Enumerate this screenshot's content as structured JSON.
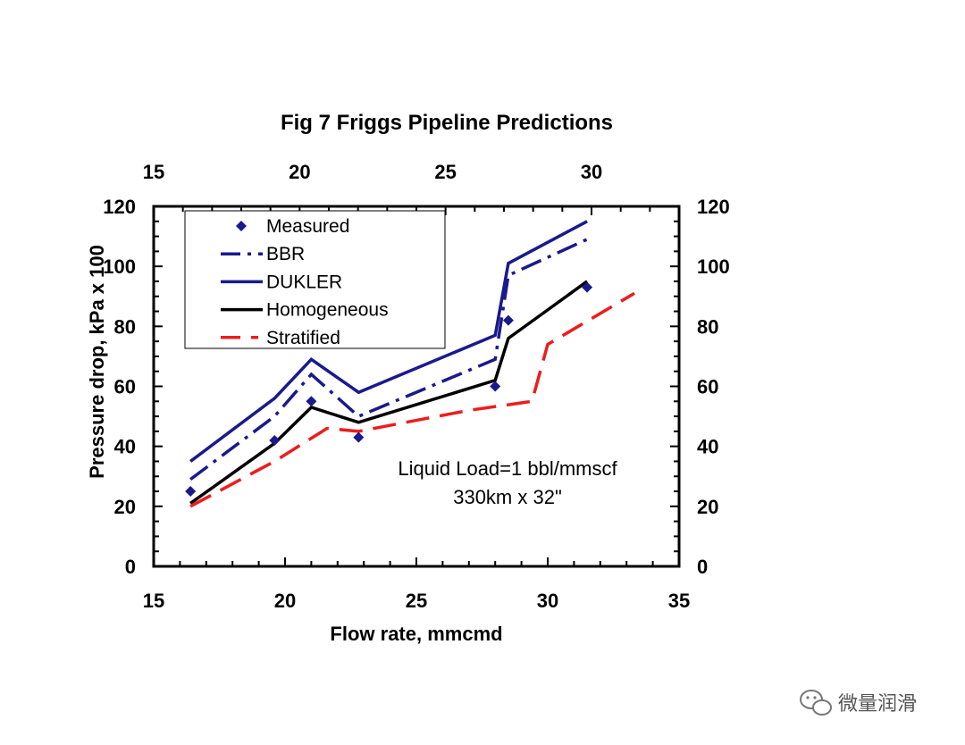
{
  "chart_data": {
    "type": "line",
    "title": "Fig 7  Friggs Pipeline Predictions",
    "xlabel": "Flow rate, mmcmd",
    "ylabel": "Pressure drop, kPa x 100",
    "xlim": [
      15,
      35
    ],
    "ylim": [
      0,
      120
    ],
    "x_ticks": [
      "15",
      "20",
      "25",
      "30",
      "35"
    ],
    "y_ticks": [
      "0",
      "20",
      "40",
      "60",
      "80",
      "100",
      "120"
    ],
    "top_xlim": [
      15,
      33
    ],
    "top_x_ticks": [
      "15",
      "20",
      "25",
      "30"
    ],
    "right_y_ticks": [
      "0",
      "20",
      "40",
      "60",
      "80",
      "100",
      "120"
    ],
    "legend_position": "top-left",
    "grid": false,
    "series": [
      {
        "name": "Measured",
        "style": "marker",
        "color": "#1a1a8c",
        "x": [
          16.4,
          19.6,
          21.0,
          22.8,
          28.0,
          28.5,
          31.5
        ],
        "y": [
          25,
          42,
          55,
          43,
          60,
          82,
          93
        ]
      },
      {
        "name": "BBR",
        "style": "dash-dot",
        "color": "#1a1a8c",
        "x": [
          16.4,
          19.6,
          21.0,
          22.8,
          28.0,
          28.5,
          31.5
        ],
        "y": [
          29,
          50,
          64,
          50,
          69,
          97,
          109
        ]
      },
      {
        "name": "DUKLER",
        "style": "solid",
        "color": "#1a1a8c",
        "x": [
          16.4,
          19.6,
          21.0,
          22.8,
          28.0,
          28.5,
          31.5
        ],
        "y": [
          35,
          56,
          69,
          58,
          77,
          101,
          115
        ]
      },
      {
        "name": "Homogeneous",
        "style": "solid",
        "color": "#000000",
        "x": [
          16.4,
          19.6,
          21.0,
          22.8,
          28.0,
          28.5,
          31.5
        ],
        "y": [
          21,
          41,
          53,
          48,
          62,
          76,
          95
        ]
      },
      {
        "name": "Stratified",
        "style": "dashed",
        "color": "#ee1c1c",
        "x": [
          16.4,
          19.6,
          21.6,
          22.8,
          27.0,
          29.4,
          30.0,
          33.3
        ],
        "y": [
          20,
          35,
          46,
          45,
          52,
          55,
          74,
          91
        ]
      }
    ],
    "annotations": [
      "Liquid Load=1 bbl/mmscf",
      "330km x 32\""
    ]
  },
  "watermark": {
    "icon": "wechat-icon",
    "text": "微量润滑"
  }
}
